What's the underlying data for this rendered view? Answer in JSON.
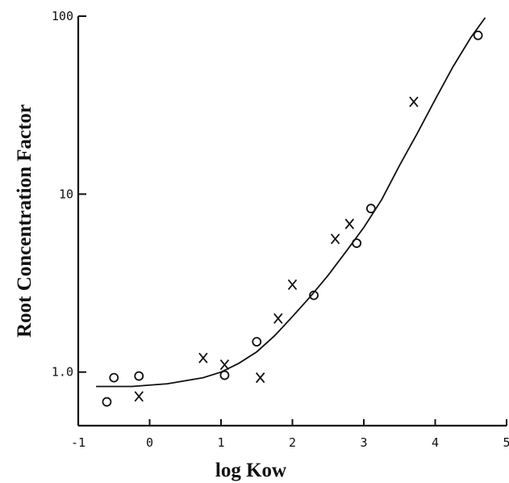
{
  "chart_data": {
    "type": "scatter",
    "title": "",
    "xlabel": "log Kow",
    "ylabel": "Root Concentration Factor",
    "xlim": [
      -1,
      5
    ],
    "ylim": [
      0.5,
      100
    ],
    "y_scale": "log",
    "grid": false,
    "x_ticks": [
      -1,
      0,
      1,
      2,
      3,
      4,
      5
    ],
    "x_tick_labels": [
      "-1",
      "0",
      "1",
      "2",
      "3",
      "4",
      "5"
    ],
    "y_ticks": [
      1,
      10,
      100
    ],
    "y_tick_labels": [
      "1.0",
      "10",
      "100"
    ],
    "series": [
      {
        "marker": "o",
        "x": [
          -0.6,
          -0.5,
          -0.15,
          1.05,
          1.5,
          2.3,
          2.9,
          3.1,
          4.6
        ],
        "y": [
          0.68,
          0.93,
          0.95,
          0.96,
          1.48,
          2.7,
          5.3,
          8.3,
          78
        ]
      },
      {
        "marker": "x",
        "x": [
          -0.15,
          0.75,
          1.05,
          1.55,
          1.8,
          2.0,
          2.6,
          2.8,
          3.7
        ],
        "y": [
          0.73,
          1.2,
          1.1,
          0.93,
          2.0,
          3.1,
          5.6,
          6.8,
          33
        ]
      }
    ],
    "fit_curve": {
      "x": [
        -0.75,
        -0.25,
        0.25,
        0.75,
        1.0,
        1.25,
        1.5,
        1.75,
        2.0,
        2.25,
        2.5,
        2.75,
        3.0,
        3.25,
        3.5,
        3.75,
        4.0,
        4.25,
        4.5,
        4.7
      ],
      "y": [
        0.83,
        0.83,
        0.86,
        0.93,
        1.0,
        1.12,
        1.3,
        1.6,
        2.05,
        2.65,
        3.5,
        4.75,
        6.5,
        9.3,
        14.5,
        22,
        34,
        52,
        76,
        98
      ]
    }
  }
}
